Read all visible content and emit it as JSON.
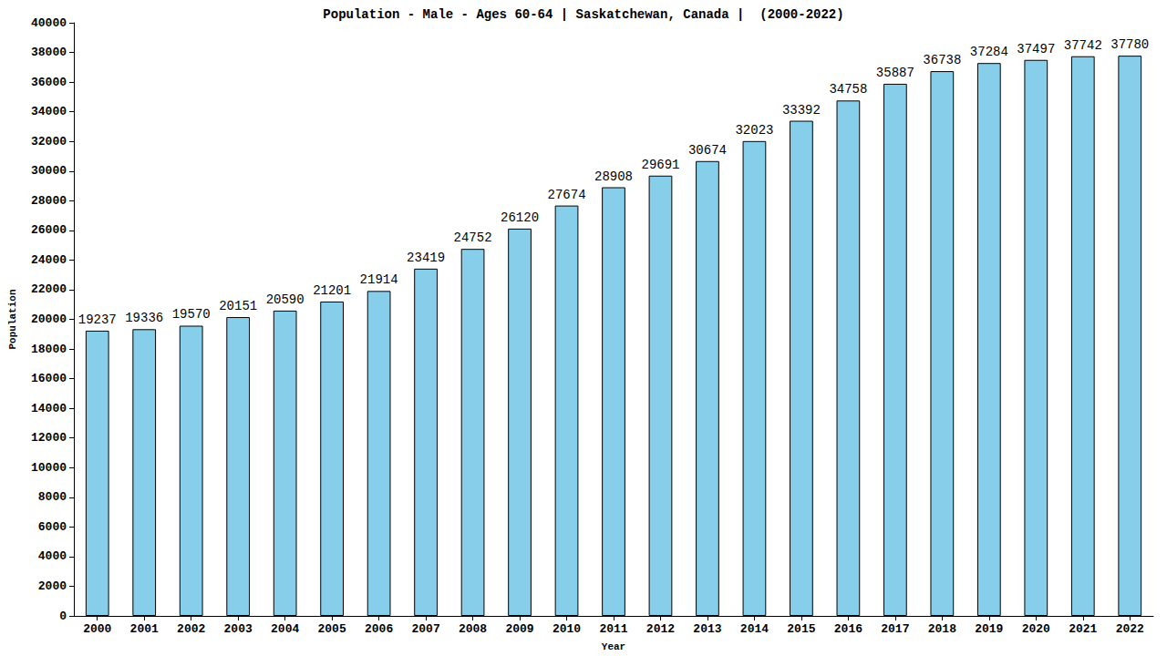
{
  "chart_data": {
    "type": "bar",
    "title": "Population - Male - Ages 60-64 | Saskatchewan, Canada |  (2000-2022)",
    "x_label": "Year",
    "y_label": "Population",
    "categories": [
      "2000",
      "2001",
      "2002",
      "2003",
      "2004",
      "2005",
      "2006",
      "2007",
      "2008",
      "2009",
      "2010",
      "2011",
      "2012",
      "2013",
      "2014",
      "2015",
      "2016",
      "2017",
      "2018",
      "2019",
      "2020",
      "2021",
      "2022"
    ],
    "values": [
      19237,
      19336,
      19570,
      20151,
      20590,
      21201,
      21914,
      23419,
      24752,
      26120,
      27674,
      28908,
      29691,
      30674,
      32023,
      33392,
      34758,
      35887,
      36738,
      37284,
      37497,
      37742,
      37780
    ],
    "color": "#87ceeb",
    "ylim": [
      0,
      40000
    ],
    "yticks": [
      0,
      2000,
      4000,
      6000,
      8000,
      10000,
      12000,
      14000,
      16000,
      18000,
      20000,
      22000,
      24000,
      26000,
      28000,
      30000,
      32000,
      34000,
      36000,
      38000,
      40000
    ],
    "grid": false,
    "data_labels": true
  }
}
